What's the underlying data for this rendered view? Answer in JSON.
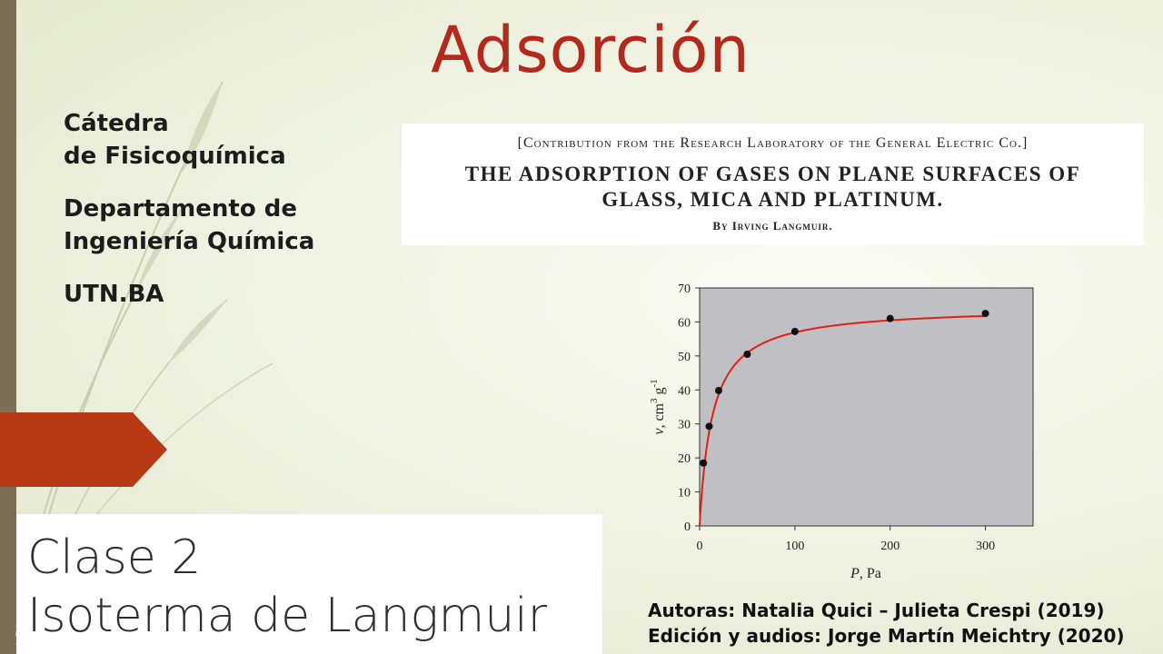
{
  "slide": {
    "title": "Adsorción",
    "info_lines": [
      "Cátedra",
      "de Fisicoquímica",
      "Departamento de",
      "Ingeniería Química",
      "UTN.BA"
    ],
    "paper": {
      "contribution": "[Contribution from the Research Laboratory of the General Electric Co.]",
      "title_line1": "THE ADSORPTION OF GASES ON PLANE SURFACES OF",
      "title_line2": "GLASS, MICA AND PLATINUM.",
      "author": "By Irving Langmuir."
    },
    "clase_line1": "Clase 2",
    "clase_line2": "Isoterma de Langmuir",
    "authors_line1": "Autoras: Natalia Quici – Julieta Crespi (2019)",
    "authors_line2": "Edición y audios: Jorge Martín Meichtry (2020)",
    "colors": {
      "title": "#b32a1c",
      "arrow": "#b83a14",
      "curve": "#e02010",
      "plot_bg": "#c0bfc3"
    }
  },
  "chart_data": {
    "type": "scatter",
    "xlabel": "P, Pa",
    "ylabel": "v, cm3 g-1",
    "xlim": [
      0,
      350
    ],
    "ylim": [
      0,
      70
    ],
    "x_ticks": [
      "0",
      "100",
      "200",
      "300"
    ],
    "y_ticks": [
      "0",
      "10",
      "20",
      "30",
      "40",
      "50",
      "60",
      "70"
    ],
    "series": [
      {
        "points": [
          [
            4,
            18.5
          ],
          [
            10,
            29.3
          ],
          [
            20,
            39.8
          ],
          [
            50,
            50.5
          ],
          [
            100,
            57.2
          ],
          [
            200,
            61.0
          ],
          [
            300,
            62.5
          ]
        ]
      }
    ],
    "fit_curve": {
      "vmax": 64.5,
      "b": 0.075
    }
  }
}
